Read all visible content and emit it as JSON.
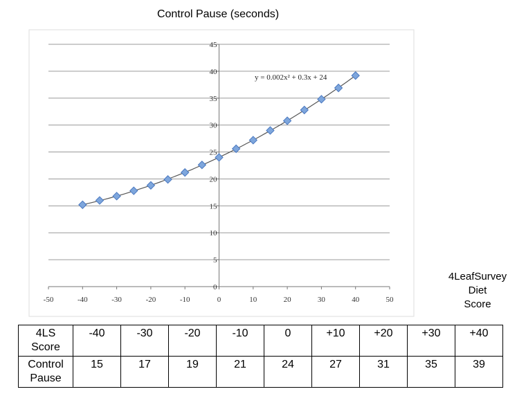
{
  "chart_data": {
    "type": "scatter",
    "title": "Control Pause (seconds)",
    "equation": "y = 0.002x² + 0.3x + 24",
    "xlim": [
      -50,
      50
    ],
    "ylim": [
      0,
      45
    ],
    "x_ticks": [
      "-50",
      "-40",
      "-30",
      "-20",
      "-10",
      "0",
      "10",
      "20",
      "30",
      "40",
      "50"
    ],
    "y_ticks": [
      "0",
      "5",
      "10",
      "15",
      "20",
      "25",
      "30",
      "35",
      "40",
      "45"
    ],
    "grid": "horizontal",
    "trendline": "polynomial",
    "series": [
      {
        "x": [
          -40,
          -35,
          -30,
          -25,
          -20,
          -15,
          -10,
          -5,
          0,
          5,
          10,
          15,
          20,
          25,
          30,
          35,
          40
        ],
        "y": [
          15.2,
          16.0,
          16.8,
          17.8,
          18.8,
          19.9,
          21.2,
          22.6,
          24.0,
          25.6,
          27.2,
          29.0,
          30.8,
          32.8,
          34.8,
          36.9,
          39.2
        ]
      }
    ]
  },
  "axis_note": [
    "4LeafSurvey",
    "Diet",
    "Score"
  ],
  "table": {
    "row1_label": [
      "4LS",
      "Score"
    ],
    "row2_label": [
      "Control",
      "Pause"
    ],
    "scores": [
      "-40",
      "-30",
      "-20",
      "-10",
      "0",
      "+10",
      "+20",
      "+30",
      "+40"
    ],
    "pauses": [
      "15",
      "17",
      "19",
      "21",
      "24",
      "27",
      "31",
      "35",
      "39"
    ]
  },
  "colors": {
    "marker_fill": "#7ea6dc",
    "marker_stroke": "#4a78c0",
    "curve": "#555555",
    "grid": "#9a9a9a",
    "plot_border": "#dddddd"
  }
}
